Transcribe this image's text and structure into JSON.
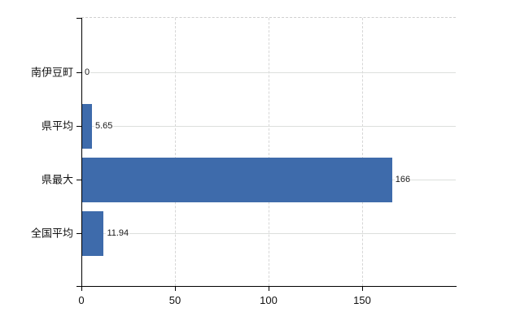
{
  "chart_data": {
    "type": "bar",
    "orientation": "horizontal",
    "title": "",
    "xlabel": "",
    "ylabel": "",
    "categories": [
      "南伊豆町",
      "県平均",
      "県最大",
      "全国平均"
    ],
    "values": [
      0,
      5.65,
      166,
      11.94
    ],
    "value_labels": [
      "0",
      "5.65",
      "166",
      "11.94"
    ],
    "xlim": [
      0,
      200
    ],
    "xticks": [
      0,
      50,
      100,
      150
    ],
    "xtick_labels": [
      "0",
      "50",
      "100",
      "150"
    ],
    "grid": true,
    "legend": "none",
    "bar_color": "#3e6bab",
    "gridline_color": "#dcdfdc",
    "axis_color": "#000000",
    "background_color": "#ffffff"
  }
}
